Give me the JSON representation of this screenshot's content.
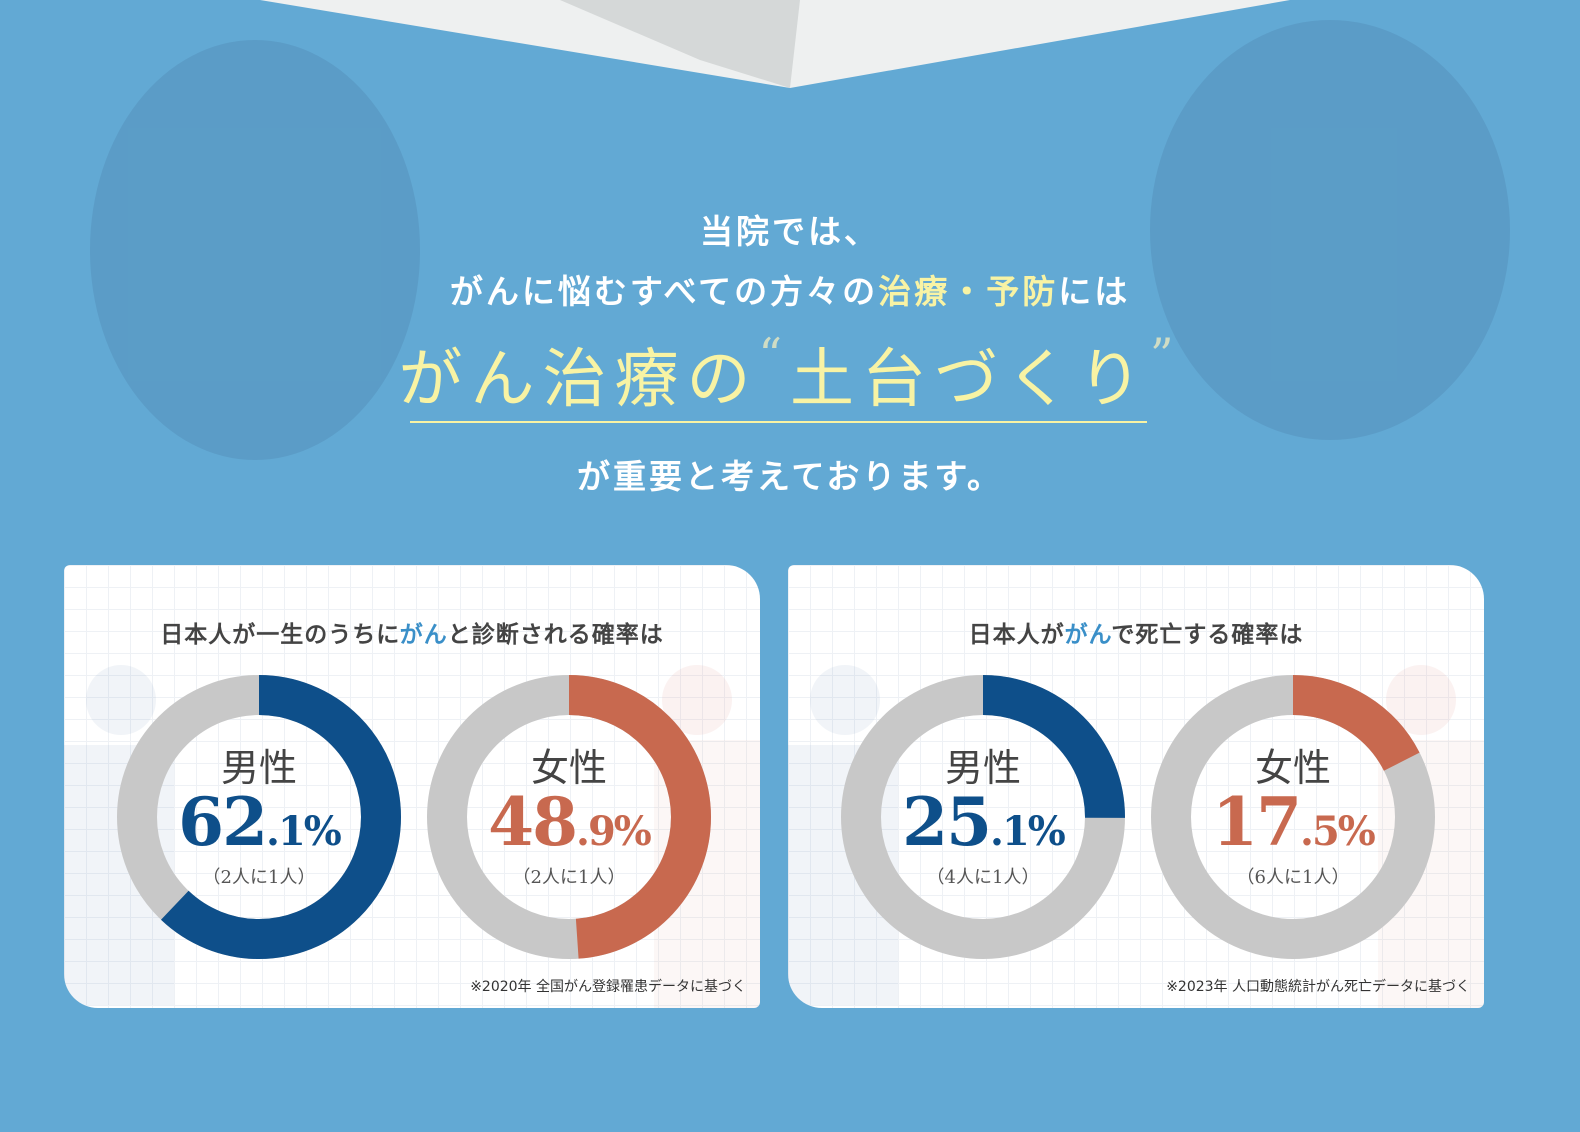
{
  "headline": {
    "line1": "当院では、",
    "line2_pre": "がんに悩むすべての方々の",
    "line2_hl": "治療・予防",
    "line2_post": "には",
    "line3_pre": "がん治療の",
    "line3_open_quote": "“",
    "line3_hl": "土台づくり",
    "line3_close_quote": "”",
    "line4": "が重要と考えております。"
  },
  "colors": {
    "background": "#62a9d4",
    "male": "#0e4f8a",
    "female": "#c8694f",
    "rest": "#c8c8c8",
    "highlight": "#f8f3a4"
  },
  "chart_data": [
    {
      "type": "pie",
      "title_pre": "日本人が一生のうちに",
      "title_hl": "がん",
      "title_post": "と診断される確率は",
      "note": "※2020年 全国がん登録罹患データに基づく",
      "series": [
        {
          "name": "男性",
          "value": 62.1,
          "int": "62",
          "dec": ".1",
          "unit": "%",
          "ratio": "（2人に1人）"
        },
        {
          "name": "女性",
          "value": 48.9,
          "int": "48",
          "dec": ".9",
          "unit": "%",
          "ratio": "（2人に1人）"
        }
      ]
    },
    {
      "type": "pie",
      "title_pre": "日本人が",
      "title_hl": "がん",
      "title_post": "で死亡する確率は",
      "note": "※2023年 人口動態統計がん死亡データに基づく",
      "series": [
        {
          "name": "男性",
          "value": 25.1,
          "int": "25",
          "dec": ".1",
          "unit": "%",
          "ratio": "（4人に1人）"
        },
        {
          "name": "女性",
          "value": 17.5,
          "int": "17",
          "dec": ".5",
          "unit": "%",
          "ratio": "（6人に1人）"
        }
      ]
    }
  ]
}
